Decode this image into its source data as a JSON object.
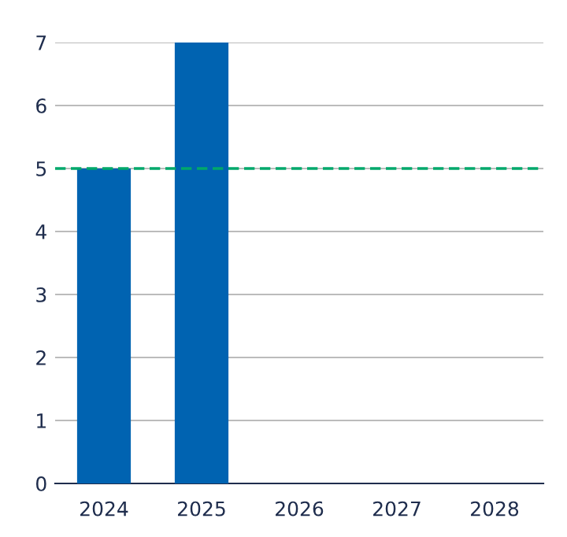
{
  "chart_data": {
    "type": "bar",
    "categories": [
      "2024",
      "2025",
      "2026",
      "2027",
      "2028"
    ],
    "values": [
      5,
      7,
      null,
      null,
      null
    ],
    "color": "#0063b1",
    "ylim": [
      0,
      7
    ],
    "yticks": [
      0,
      1,
      2,
      3,
      4,
      5,
      6,
      7
    ],
    "grid": "y",
    "ref_lines": [
      {
        "axis": "y",
        "value": 5,
        "color": "#00a86b",
        "line_style": "dashed"
      }
    ]
  }
}
